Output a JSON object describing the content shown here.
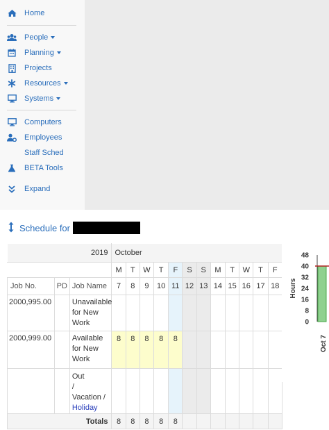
{
  "sidebar": {
    "items": [
      {
        "label": "Home",
        "icon": "home-icon",
        "caret": false
      },
      {
        "label": "People",
        "icon": "users-icon",
        "caret": true
      },
      {
        "label": "Planning",
        "icon": "calendar-icon",
        "caret": true
      },
      {
        "label": "Projects",
        "icon": "building-icon",
        "caret": false
      },
      {
        "label": "Resources",
        "icon": "asterisk-icon",
        "caret": true
      },
      {
        "label": "Systems",
        "icon": "monitor-icon",
        "caret": true
      },
      {
        "label": "Computers",
        "icon": "desktop-icon",
        "caret": false
      },
      {
        "label": "Employees",
        "icon": "user-gear-icon",
        "caret": false
      },
      {
        "label": "Staff Sched",
        "icon": "",
        "caret": false
      },
      {
        "label": "BETA Tools",
        "icon": "flask-icon",
        "caret": false
      },
      {
        "label": "Expand",
        "icon": "double-chevron-down-icon",
        "caret": false
      }
    ]
  },
  "schedule": {
    "title": "Schedule for",
    "year": "2019",
    "month": "October",
    "day_letters": [
      "M",
      "T",
      "W",
      "T",
      "F",
      "S",
      "S",
      "M",
      "T",
      "W",
      "T",
      "F"
    ],
    "day_numbers": [
      "7",
      "8",
      "9",
      "10",
      "11",
      "12",
      "13",
      "14",
      "15",
      "16",
      "17",
      "18"
    ],
    "columns": {
      "job_no": "Job No.",
      "pd": "PD",
      "job_name": "Job Name"
    },
    "rows": [
      {
        "job_no": "2000,995.00",
        "pd": "",
        "job_name": [
          "Unavailable",
          "for New",
          "Work"
        ],
        "hours": [
          "",
          "",
          "",
          "",
          "",
          "",
          "",
          "",
          "",
          "",
          "",
          ""
        ]
      },
      {
        "job_no": "2000,999.00",
        "pd": "",
        "job_name": [
          "Available",
          "for New",
          "Work"
        ],
        "hours": [
          "8",
          "8",
          "8",
          "8",
          "8",
          "",
          "",
          "",
          "",
          "",
          "",
          ""
        ]
      },
      {
        "job_no": "",
        "pd": "",
        "job_name": [
          "Out",
          "/",
          "Vacation /",
          "Holiday"
        ],
        "hours": [
          "",
          "",
          "",
          "",
          "",
          "",
          "",
          "",
          "",
          "",
          "",
          ""
        ]
      }
    ],
    "totals_label": "Totals",
    "totals": [
      "8",
      "8",
      "8",
      "8",
      "8",
      "",
      "",
      "",
      "",
      "",
      "",
      ""
    ]
  },
  "chart_data": {
    "type": "bar",
    "ylabel": "Hours",
    "yticks": [
      0,
      8,
      16,
      24,
      32,
      40,
      48
    ],
    "ylim": [
      0,
      48
    ],
    "reference_line": 40,
    "categories": [
      "Oct 7"
    ],
    "values": [
      40
    ],
    "colors": {
      "bar": "#8fd18f",
      "bar_edge": "#4aa84a",
      "reference": "#b22222"
    }
  }
}
